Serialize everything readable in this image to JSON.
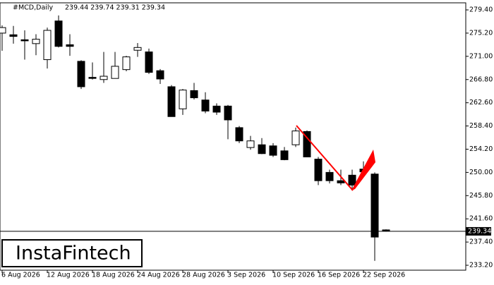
{
  "header": {
    "symbol": "#MCD,Daily",
    "quote": "239.44 239.74 239.31 239.34"
  },
  "logo": "InstaFintech",
  "chart_data": {
    "type": "candlestick",
    "categories": [
      "6 Aug 2026",
      null,
      null,
      null,
      "12 Aug 2026",
      null,
      null,
      null,
      "18 Aug 2026",
      null,
      null,
      null,
      "24 Aug 2026",
      null,
      null,
      null,
      "28 Aug 2026",
      null,
      null,
      null,
      "3 Sep 2026",
      null,
      null,
      null,
      "10 Sep 2026",
      null,
      null,
      null,
      "16 Sep 2026",
      null,
      null,
      null,
      "22 Sep 2026",
      null,
      null
    ],
    "open": [
      275.2,
      274.9,
      274.0,
      273.3,
      270.4,
      277.4,
      273.1,
      270.1,
      267.2,
      266.8,
      267.0,
      268.6,
      272.1,
      271.8,
      268.4,
      265.5,
      261.5,
      264.8,
      263.1,
      262.0,
      262.0,
      258.1,
      254.5,
      255.0,
      254.8,
      253.9,
      255.0,
      257.4,
      252.4,
      250.0,
      248.5,
      249.5,
      250.6,
      249.7,
      239.6
    ],
    "high": [
      276.6,
      276.5,
      275.7,
      275.0,
      276.2,
      278.4,
      275.0,
      270.3,
      269.9,
      271.8,
      271.8,
      271.1,
      273.4,
      272.4,
      268.7,
      265.8,
      265.1,
      266.2,
      264.5,
      262.5,
      262.2,
      258.4,
      256.6,
      256.2,
      255.3,
      254.6,
      258.1,
      257.6,
      252.8,
      250.5,
      250.5,
      250.5,
      252.0,
      250.0,
      239.7
    ],
    "low": [
      272.0,
      273.3,
      270.4,
      271.2,
      268.8,
      272.6,
      271.1,
      265.1,
      266.8,
      266.2,
      267.3,
      268.3,
      270.9,
      267.8,
      266.0,
      260.1,
      260.4,
      263.2,
      260.7,
      260.4,
      256.0,
      255.3,
      254.1,
      253.3,
      252.8,
      252.2,
      254.6,
      252.8,
      247.7,
      248.0,
      247.7,
      246.9,
      249.5,
      234.0,
      239.3
    ],
    "close": [
      276.2,
      274.6,
      273.8,
      274.1,
      275.7,
      272.8,
      272.8,
      265.5,
      267.0,
      267.4,
      269.2,
      270.9,
      272.6,
      268.1,
      266.9,
      260.1,
      264.9,
      263.5,
      261.1,
      260.9,
      259.5,
      255.7,
      255.7,
      253.4,
      253.1,
      252.3,
      257.5,
      252.8,
      248.5,
      248.5,
      248.1,
      247.7,
      250.1,
      238.3,
      239.4
    ],
    "up_color": "#ffffff",
    "down_color": "#000000",
    "ylim": [
      232.31,
      280.68
    ],
    "yticks": [
      {
        "value": 279.4,
        "label": "279.40"
      },
      {
        "value": 275.2,
        "label": "275.20"
      },
      {
        "value": 271.0,
        "label": "271.00"
      },
      {
        "value": 266.8,
        "label": "266.80"
      },
      {
        "value": 262.6,
        "label": "262.60"
      },
      {
        "value": 258.4,
        "label": "258.40"
      },
      {
        "value": 254.2,
        "label": "254.20"
      },
      {
        "value": 250.0,
        "label": "250.00"
      },
      {
        "value": 245.8,
        "label": "245.80"
      },
      {
        "value": 241.6,
        "label": "241.60"
      },
      {
        "value": 237.4,
        "label": "237.40"
      },
      {
        "value": 233.2,
        "label": "233.20"
      }
    ],
    "price_line": {
      "value": 239.34,
      "label": "239.34"
    }
  }
}
